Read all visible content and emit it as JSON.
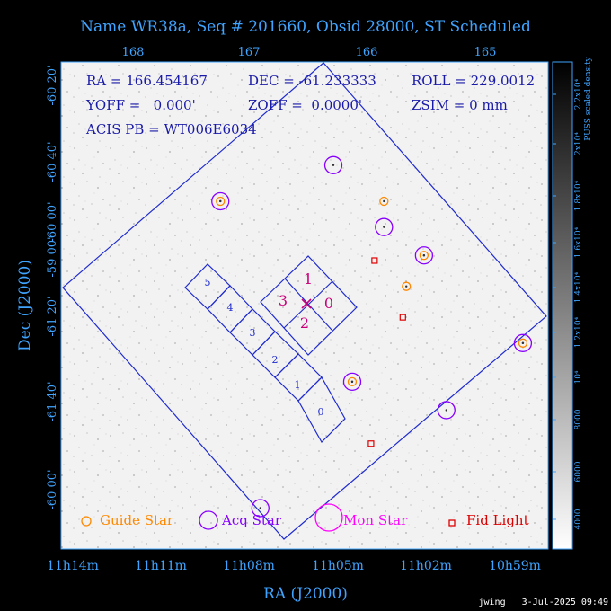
{
  "title": "Name WR38a, Seq # 201660, Obsid 28000, ST Scheduled",
  "info": {
    "line1": [
      "RA = 166.454167",
      "DEC = -61.233333",
      "ROLL = 229.0012"
    ],
    "line2": [
      "YOFF =   0.000'",
      "ZOFF =  0.0000'",
      "ZSIM = 0 mm"
    ],
    "line3": "ACIS PB = WT006E6034"
  },
  "axes": {
    "xlabel": "RA (J2000)",
    "ylabel": "Dec (J2000)",
    "top_ticks": [
      "168",
      "167",
      "166",
      "165"
    ],
    "bottom_ticks": [
      "11h14m",
      "11h11m",
      "11h08m",
      "11h05m",
      "11h02m",
      "10h59m"
    ],
    "left_ticks": [
      "-60 20'",
      "-60 40'",
      "-60 00'",
      "-59 00'",
      "-61 20'",
      "-61 40'",
      "-60 00'"
    ]
  },
  "colorbar": {
    "label": "PUSS scaled density",
    "ticks": [
      "4000",
      "6000",
      "8000",
      "10⁴",
      "1.2x10⁴",
      "1.4x10⁴",
      "1.6x10⁴",
      "1.8x10⁴",
      "2x10⁴",
      "2.2x10⁴"
    ]
  },
  "legend": [
    {
      "label": "Guide Star",
      "color": "#ff8800"
    },
    {
      "label": "Acq Star",
      "color": "#8800ff"
    },
    {
      "label": "Mon Star",
      "color": "#ff00ff"
    },
    {
      "label": "Fid Light",
      "color": "#dd0000"
    }
  ],
  "chips": {
    "s_array": [
      "5",
      "4",
      "3",
      "2",
      "1",
      "0"
    ],
    "i_array": [
      "1",
      "3",
      "0",
      "2"
    ]
  },
  "footer": "jwing   3-Jul-2025 09:49",
  "chart_data": {
    "type": "scatter",
    "title": "Name WR38a, Seq # 201660, Obsid 28000, ST Scheduled",
    "xlabel": "RA (J2000)",
    "ylabel": "Dec (J2000)",
    "pointing": {
      "ra": 166.454167,
      "dec": -61.233333,
      "roll": 229.0012
    },
    "series": [
      {
        "name": "Guide Star",
        "points": [
          [
            167.25,
            -60.87
          ],
          [
            165.86,
            -60.87
          ],
          [
            165.52,
            -61.08
          ],
          [
            165.67,
            -61.2
          ],
          [
            164.68,
            -61.42
          ],
          [
            166.13,
            -61.57
          ]
        ]
      },
      {
        "name": "Acq Star",
        "points": [
          [
            167.25,
            -60.87
          ],
          [
            166.29,
            -60.73
          ],
          [
            165.86,
            -60.97
          ],
          [
            165.52,
            -61.08
          ],
          [
            164.68,
            -61.42
          ],
          [
            166.13,
            -61.57
          ],
          [
            165.33,
            -61.68
          ],
          [
            166.91,
            -62.06
          ]
        ]
      },
      {
        "name": "Fid Light",
        "points": [
          [
            165.94,
            -61.1
          ],
          [
            165.7,
            -61.32
          ],
          [
            165.97,
            -61.81
          ]
        ]
      }
    ]
  }
}
